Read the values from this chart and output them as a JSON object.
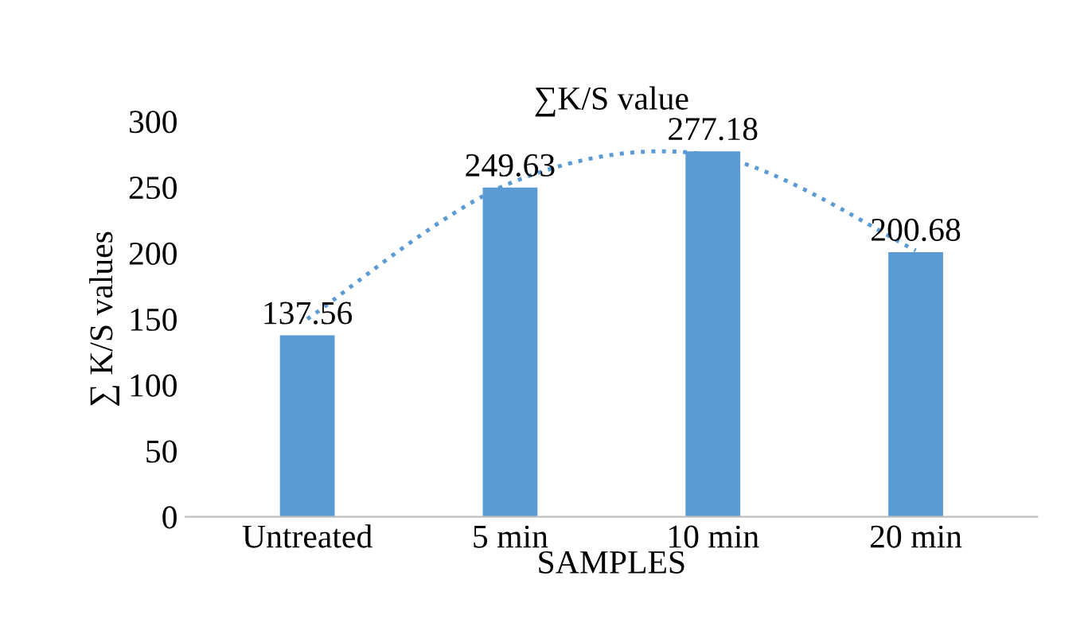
{
  "chart_data": {
    "type": "bar",
    "title": "∑K/S value",
    "xlabel": "SAMPLES",
    "ylabel": "∑ K/S values",
    "categories": [
      "Untreated",
      "5 min",
      "10 min",
      "20 min"
    ],
    "series": [
      {
        "color": "#5b9bd5",
        "values": [
          137.56,
          249.63,
          277.18,
          200.68
        ],
        "data_labels": true
      },
      {
        "type": "line",
        "color": "#5b9bd5",
        "line_style": "dotted",
        "values": [
          150,
          253,
          274,
          202
        ]
      }
    ],
    "ylim": [
      0,
      300
    ],
    "yticks": [
      0,
      50,
      100,
      150,
      200,
      250,
      300
    ],
    "grid": false,
    "legend": false
  }
}
